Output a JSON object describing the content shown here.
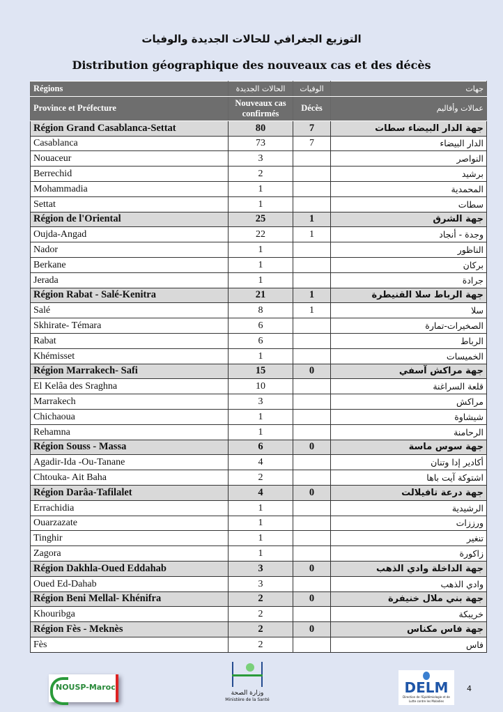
{
  "title_ar": "التوزيع الجغرافي للحالات الجديدة والوفيات",
  "title_fr": "Distribution géographique des nouveaux cas et des décès",
  "header": {
    "regions": "Régions",
    "province": "Province et Préfecture",
    "new_ar": "الحالات الجديدة",
    "new_fr": "Nouveaux cas confirmés",
    "deaths_ar": "الوفيات",
    "deaths_fr": "Décès",
    "regions_ar": "جهات",
    "province_ar": "عمالات وأقاليم"
  },
  "rows": [
    {
      "type": "region",
      "fr": "Région Grand Casablanca-Settat",
      "cases": "80",
      "deaths": "7",
      "ar": "جهة الدار البيضاء سطات"
    },
    {
      "type": "row",
      "fr": "Casablanca",
      "cases": "73",
      "deaths": "7",
      "ar": "الدار البيضاء"
    },
    {
      "type": "row",
      "fr": "Nouaceur",
      "cases": "3",
      "deaths": "",
      "ar": "النواصر"
    },
    {
      "type": "row",
      "fr": "Berrechid",
      "cases": "2",
      "deaths": "",
      "ar": "برشيد"
    },
    {
      "type": "row",
      "fr": "Mohammadia",
      "cases": "1",
      "deaths": "",
      "ar": "المحمدية"
    },
    {
      "type": "row",
      "fr": "Settat",
      "cases": "1",
      "deaths": "",
      "ar": "سطات"
    },
    {
      "type": "region",
      "fr": "Région de l'Oriental",
      "cases": "25",
      "deaths": "1",
      "ar": "جهة الشرق"
    },
    {
      "type": "row",
      "fr": "Oujda-Angad",
      "cases": "22",
      "deaths": "1",
      "ar": "وجدة - أنجاد"
    },
    {
      "type": "row",
      "fr": "Nador",
      "cases": "1",
      "deaths": "",
      "ar": "الناظور"
    },
    {
      "type": "row",
      "fr": "Berkane",
      "cases": "1",
      "deaths": "",
      "ar": "بركان"
    },
    {
      "type": "row",
      "fr": "Jerada",
      "cases": "1",
      "deaths": "",
      "ar": "جرادة"
    },
    {
      "type": "region",
      "fr": "Région Rabat - Salé-Kenitra",
      "cases": "21",
      "deaths": "1",
      "ar": "جهة الرباط سلا القنيطرة"
    },
    {
      "type": "row",
      "fr": "Salé",
      "cases": "8",
      "deaths": "1",
      "ar": "سلا"
    },
    {
      "type": "row",
      "fr": "Skhirate- Témara",
      "cases": "6",
      "deaths": "",
      "ar": "الصخيرات-تمارة"
    },
    {
      "type": "row",
      "fr": "Rabat",
      "cases": "6",
      "deaths": "",
      "ar": "الرباط"
    },
    {
      "type": "row",
      "fr": "Khémisset",
      "cases": "1",
      "deaths": "",
      "ar": "الخميسات"
    },
    {
      "type": "region",
      "fr": "Région Marrakech- Safi",
      "cases": "15",
      "deaths": "0",
      "ar": "جهة مراكش آسفي"
    },
    {
      "type": "row",
      "fr": "El Kelâa des  Sraghna",
      "cases": "10",
      "deaths": "",
      "ar": "قلعة السراغنة"
    },
    {
      "type": "row",
      "fr": "Marrakech",
      "cases": "3",
      "deaths": "",
      "ar": "مراكش"
    },
    {
      "type": "row",
      "fr": "Chichaoua",
      "cases": "1",
      "deaths": "",
      "ar": "شيشاوة"
    },
    {
      "type": "row",
      "fr": "Rehamna",
      "cases": "1",
      "deaths": "",
      "ar": "الرحامنة"
    },
    {
      "type": "region",
      "fr": "Région Souss - Massa",
      "cases": "6",
      "deaths": "0",
      "ar": "جهة سوس ماسة"
    },
    {
      "type": "row",
      "fr": "Agadir-Ida -Ou-Tanane",
      "cases": "4",
      "deaths": "",
      "ar": "أكادير إدا وتنان"
    },
    {
      "type": "row",
      "fr": "Chtouka- Ait Baha",
      "cases": "2",
      "deaths": "",
      "ar": "اشتوكة آيت باها"
    },
    {
      "type": "region",
      "fr": "Région Darâa-Tafilalet",
      "cases": "4",
      "deaths": "0",
      "ar": "جهة درعة تافيلالت"
    },
    {
      "type": "row",
      "fr": "Errachidia",
      "cases": "1",
      "deaths": "",
      "ar": "الرشيدية"
    },
    {
      "type": "row",
      "fr": "Ouarzazate",
      "cases": "1",
      "deaths": "",
      "ar": "ورززات"
    },
    {
      "type": "row",
      "fr": "Tinghir",
      "cases": "1",
      "deaths": "",
      "ar": "تنغير"
    },
    {
      "type": "row",
      "fr": "Zagora",
      "cases": "1",
      "deaths": "",
      "ar": "زاكورة"
    },
    {
      "type": "region",
      "fr": "Région Dakhla-Oued Eddahab",
      "cases": "3",
      "deaths": "0",
      "ar": "جهة الداخلة وادي الذهب"
    },
    {
      "type": "row",
      "fr": "Oued Ed-Dahab",
      "cases": "3",
      "deaths": "",
      "ar": "وادي الذهب"
    },
    {
      "type": "region",
      "fr": "Région Beni Mellal- Khénifra",
      "cases": "2",
      "deaths": "0",
      "ar": "جهة بني ملال خنيفرة"
    },
    {
      "type": "row",
      "fr": "Khouribga",
      "cases": "2",
      "deaths": "",
      "ar": "خريبكة"
    },
    {
      "type": "region",
      "fr": "Région Fès - Meknès",
      "cases": "2",
      "deaths": "0",
      "ar": "جهة فاس مكناس"
    },
    {
      "type": "row",
      "fr": "Fès",
      "cases": "2",
      "deaths": "",
      "ar": "فاس"
    }
  ],
  "footer": {
    "logo1": "NOUSP-Maroc",
    "logo2_ar": "وزارة الصحة",
    "logo2_fr": "Ministère de la Santé",
    "logo3": "DELM",
    "logo3_sub": "Direction de l'Epidémiologie et de Lutte contre les Maladies",
    "page": "4"
  }
}
